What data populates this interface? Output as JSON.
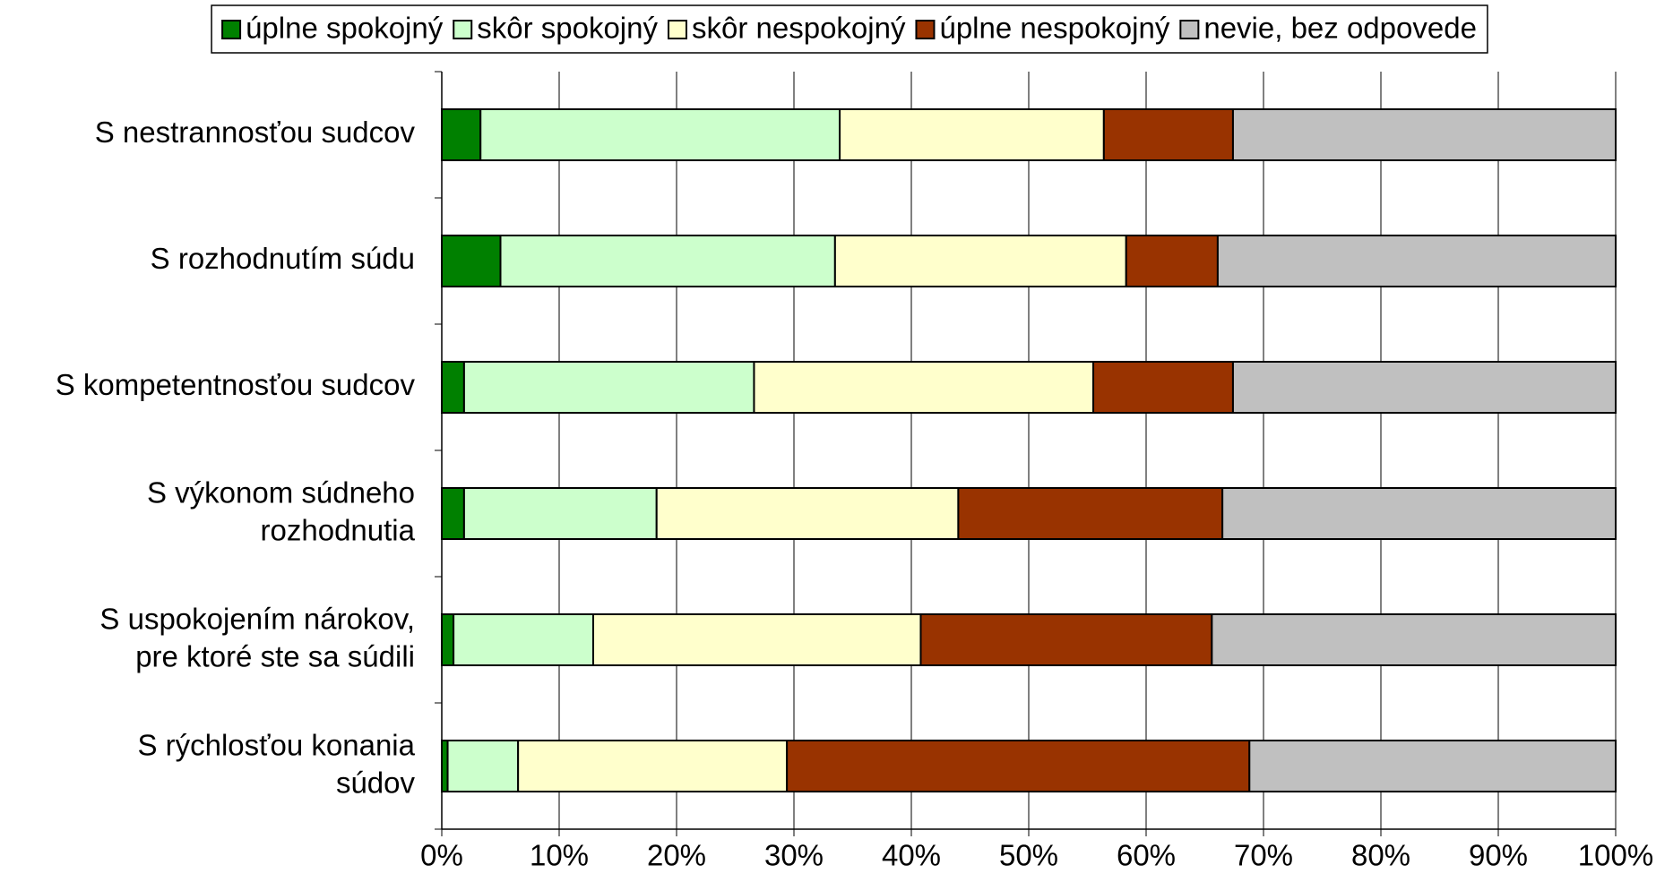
{
  "chart_data": {
    "type": "stacked-bar-horizontal",
    "categories": [
      "S nestrannosťou sudcov",
      "S rozhodnutím súdu",
      "S kompetentnosťou sudcov",
      "S výkonom súdneho\nrozhodnutia",
      "S uspokojením nárokov,\npre ktoré ste sa súdili",
      "S rýchlosťou konania\nsúdov"
    ],
    "series": [
      {
        "name": "úplne spokojný",
        "color": "#008000",
        "values": [
          3.3,
          5.0,
          1.9,
          1.9,
          1.0,
          0.5
        ]
      },
      {
        "name": "skôr spokojný",
        "color": "#ccffcc",
        "values": [
          30.6,
          28.5,
          24.7,
          16.4,
          11.9,
          6.0
        ]
      },
      {
        "name": "skôr nespokojný",
        "color": "#ffffcc",
        "values": [
          22.5,
          24.8,
          28.9,
          25.7,
          27.9,
          22.9
        ]
      },
      {
        "name": "úplne nespokojný",
        "color": "#993300",
        "values": [
          11.0,
          7.8,
          11.9,
          22.5,
          24.8,
          39.4
        ]
      },
      {
        "name": "nevie, bez odpovede",
        "color": "#c0c0c0",
        "values": [
          32.6,
          33.9,
          32.6,
          33.5,
          34.4,
          31.2
        ]
      }
    ],
    "xlim": [
      0,
      100
    ],
    "xticks": [
      {
        "value": 0,
        "label": "0%"
      },
      {
        "value": 10,
        "label": "10%"
      },
      {
        "value": 20,
        "label": "20%"
      },
      {
        "value": 30,
        "label": "30%"
      },
      {
        "value": 40,
        "label": "40%"
      },
      {
        "value": 50,
        "label": "50%"
      },
      {
        "value": 60,
        "label": "60%"
      },
      {
        "value": 70,
        "label": "70%"
      },
      {
        "value": 80,
        "label": "80%"
      },
      {
        "value": 90,
        "label": "90%"
      },
      {
        "value": 100,
        "label": "100%"
      }
    ],
    "grid": true,
    "legend": "top"
  }
}
